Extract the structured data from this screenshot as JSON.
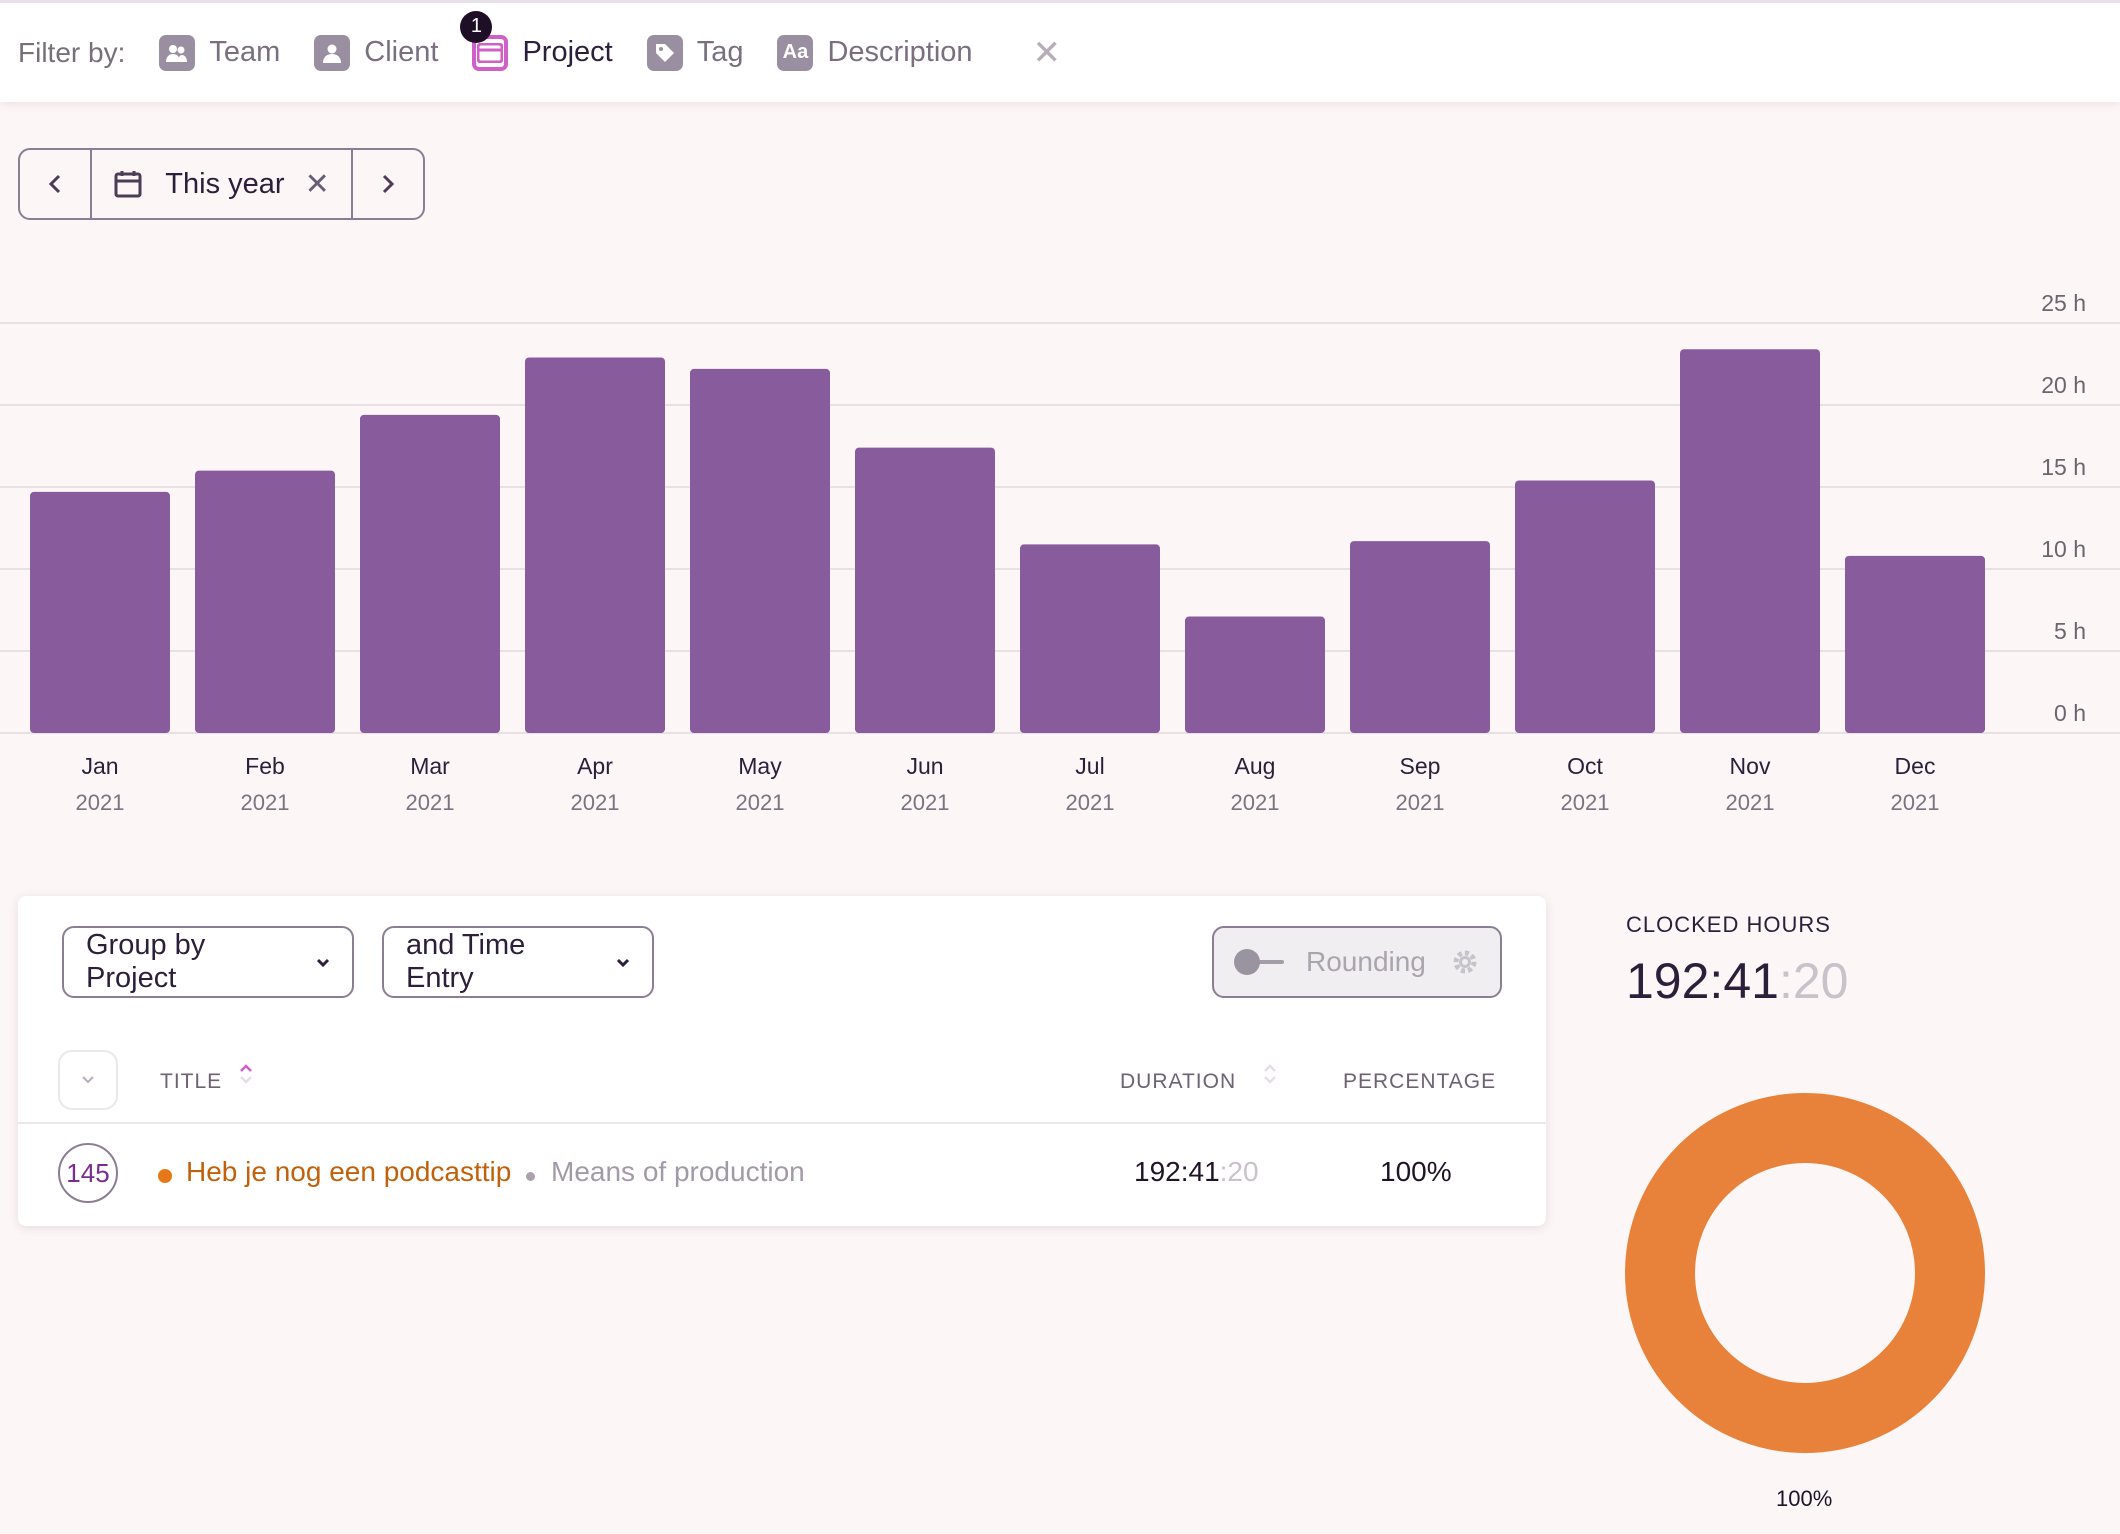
{
  "filterbar": {
    "label": "Filter by:",
    "items": [
      {
        "label": "Team",
        "icon": "team-icon"
      },
      {
        "label": "Client",
        "icon": "client-icon"
      },
      {
        "label": "Project",
        "icon": "project-icon",
        "badge": "1",
        "active": true
      },
      {
        "label": "Tag",
        "icon": "tag-icon"
      },
      {
        "label": "Description",
        "icon": "description-icon",
        "icon_text": "Aa"
      }
    ],
    "clear_icon": "close-icon"
  },
  "daterange": {
    "label": "This year",
    "prev_icon": "chevron-left-icon",
    "next_icon": "chevron-right-icon",
    "calendar_icon": "calendar-icon",
    "clear_icon": "close-icon"
  },
  "chart_data": {
    "type": "bar",
    "categories": [
      "Jan",
      "Feb",
      "Mar",
      "Apr",
      "May",
      "Jun",
      "Jul",
      "Aug",
      "Sep",
      "Oct",
      "Nov",
      "Dec"
    ],
    "category_sublabels": [
      "2021",
      "2021",
      "2021",
      "2021",
      "2021",
      "2021",
      "2021",
      "2021",
      "2021",
      "2021",
      "2021",
      "2021"
    ],
    "values": [
      14.7,
      16.0,
      19.4,
      22.9,
      22.2,
      17.4,
      11.5,
      7.1,
      11.7,
      15.4,
      23.4,
      10.8
    ],
    "ylim": [
      0,
      25
    ],
    "yticks": [
      0,
      5,
      10,
      15,
      20,
      25
    ],
    "ytick_labels": [
      "0 h",
      "5 h",
      "10 h",
      "15 h",
      "20 h",
      "25 h"
    ],
    "grid": true,
    "color": "#885b9c"
  },
  "report": {
    "group_by": "Group by Project",
    "then_by": "and Time Entry",
    "rounding_label": "Rounding",
    "columns": {
      "title": "TITLE",
      "duration": "DURATION",
      "percentage": "PERCENTAGE"
    },
    "rows": [
      {
        "count": "145",
        "project": "Heb je nog een podcasttip",
        "client": "Means of production",
        "duration_main": "192:41",
        "duration_sec": ":20",
        "percentage": "100%",
        "color": "#e57717"
      }
    ]
  },
  "summary": {
    "label": "CLOCKED HOURS",
    "value_main": "192:41",
    "value_sec": ":20",
    "donut_percentage": "100%",
    "donut_color": "#e8823a"
  }
}
